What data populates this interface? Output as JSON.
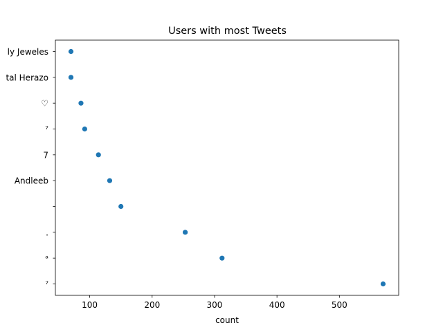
{
  "chart_data": {
    "type": "scatter",
    "title": "Users with most Tweets",
    "xlabel": "count",
    "ylabel": "",
    "xlim": [
      45,
      595
    ],
    "xticks": [
      100,
      200,
      300,
      400,
      500
    ],
    "categories": [
      "ly Jeweles",
      "tal Herazo",
      "♡",
      "ㅤㅤ⁷",
      "7",
      "Andleeb",
      "ㅤ",
      ".",
      "ᵃ",
      "⁷"
    ],
    "values": [
      70,
      70,
      86,
      92,
      114,
      132,
      150,
      253,
      312,
      570
    ],
    "marker_color": "#1f77b4",
    "grid": false,
    "legend": "none"
  }
}
